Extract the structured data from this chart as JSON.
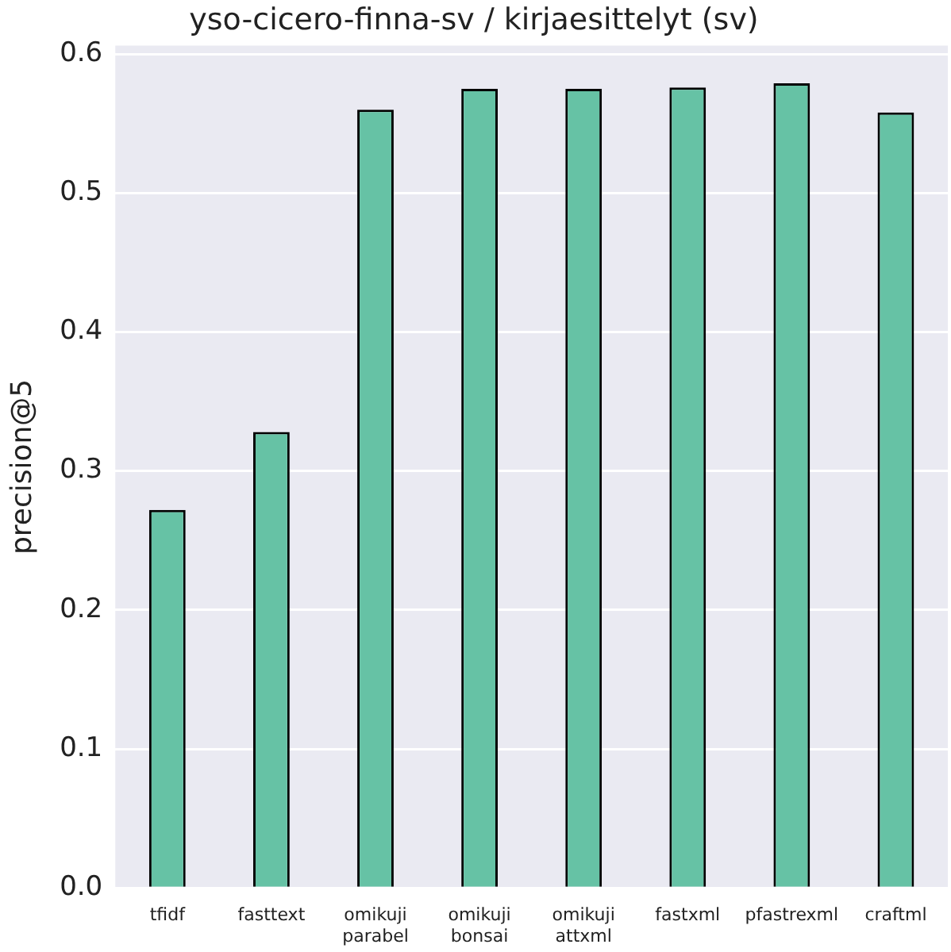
{
  "chart_data": {
    "type": "bar",
    "title": "yso-cicero-finna-sv / kirjaesittelyt (sv)",
    "ylabel": "precision@5",
    "categories": [
      "tfidf",
      "fasttext",
      "omikuji\nparabel",
      "omikuji\nbonsai",
      "omikuji\nattxml",
      "fastxml",
      "pfastrexml",
      "craftml"
    ],
    "values": [
      0.272,
      0.328,
      0.56,
      0.575,
      0.575,
      0.576,
      0.579,
      0.558
    ],
    "color": "#66c2a5",
    "ylim": [
      0,
      0.606
    ],
    "yticks": [
      {
        "value": 0,
        "label": "0.0"
      },
      0.1,
      0.2,
      0.3,
      0.4,
      0.5,
      0.6
    ],
    "grid": "y",
    "legend": false
  }
}
